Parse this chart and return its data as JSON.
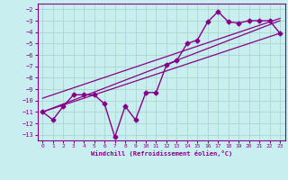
{
  "xlabel": "Windchill (Refroidissement éolien,°C)",
  "bg_color": "#c8eef0",
  "grid_color": "#a8d8cc",
  "line_color": "#880088",
  "xlim": [
    -0.5,
    23.5
  ],
  "ylim": [
    -13.5,
    -1.5
  ],
  "xticks": [
    0,
    1,
    2,
    3,
    4,
    5,
    6,
    7,
    8,
    9,
    10,
    11,
    12,
    13,
    14,
    15,
    16,
    17,
    18,
    19,
    20,
    21,
    22,
    23
  ],
  "yticks": [
    -13,
    -12,
    -11,
    -10,
    -9,
    -8,
    -7,
    -6,
    -5,
    -4,
    -3,
    -2
  ],
  "main_x": [
    0,
    1,
    2,
    3,
    4,
    5,
    6,
    7,
    8,
    9,
    10,
    11,
    12,
    13,
    14,
    15,
    16,
    17,
    18,
    19,
    20,
    21,
    22,
    23
  ],
  "main_y": [
    -11.0,
    -11.7,
    -10.5,
    -9.5,
    -9.5,
    -9.5,
    -10.3,
    -13.2,
    -10.5,
    -11.7,
    -9.3,
    -9.3,
    -6.9,
    -6.5,
    -5.0,
    -4.7,
    -3.1,
    -2.2,
    -3.1,
    -3.2,
    -3.0,
    -3.0,
    -3.0,
    -4.1
  ],
  "line1_x": [
    0,
    23
  ],
  "line1_y": [
    -11.0,
    -4.1
  ],
  "line2_x": [
    0,
    23
  ],
  "line2_y": [
    -11.0,
    -3.0
  ],
  "line3_x": [
    0,
    23
  ],
  "line3_y": [
    -9.8,
    -2.8
  ]
}
